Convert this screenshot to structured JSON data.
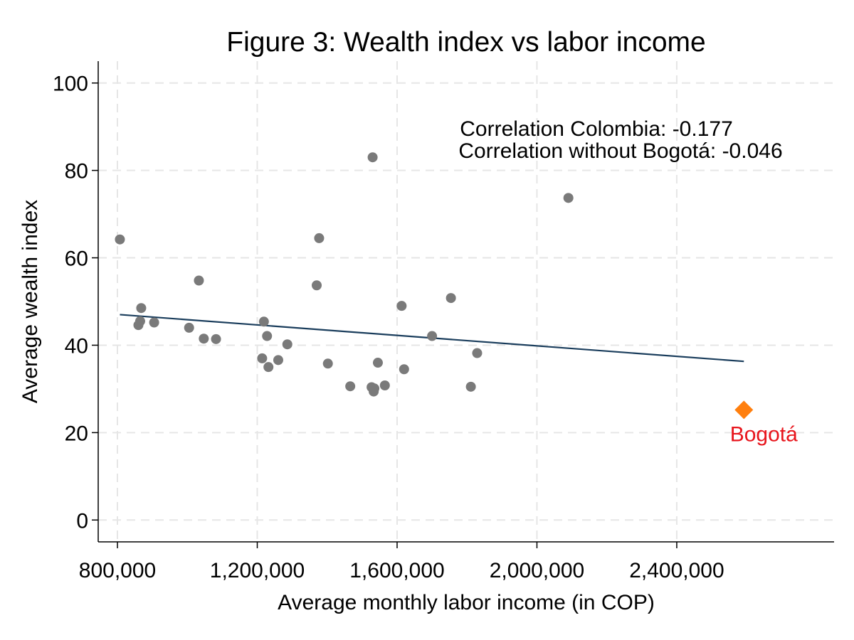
{
  "chart_data": {
    "type": "scatter",
    "title": "Figure 3: Wealth index vs labor income",
    "xlabel": "Average monthly labor income (in COP)",
    "ylabel": "Average wealth index",
    "xlim": [
      745000,
      2850000
    ],
    "ylim": [
      -5,
      105
    ],
    "x_ticks": [
      800000,
      1200000,
      1600000,
      2000000,
      2400000
    ],
    "x_tick_labels": [
      "800,000",
      "1,200,000",
      "1,600,000",
      "2,000,000",
      "2,400,000"
    ],
    "y_ticks": [
      0,
      20,
      40,
      60,
      80,
      100
    ],
    "y_tick_labels": [
      "0",
      "20",
      "40",
      "60",
      "80",
      "100"
    ],
    "grid": true,
    "annotations": [
      "Correlation Colombia: -0.177",
      "Correlation without Bogotá: -0.046"
    ],
    "points": [
      {
        "x": 807000,
        "y": 64.2
      },
      {
        "x": 860000,
        "y": 44.6
      },
      {
        "x": 865000,
        "y": 45.5
      },
      {
        "x": 868000,
        "y": 48.5
      },
      {
        "x": 905000,
        "y": 45.2
      },
      {
        "x": 1005000,
        "y": 44.0
      },
      {
        "x": 1033000,
        "y": 54.8
      },
      {
        "x": 1047000,
        "y": 41.5
      },
      {
        "x": 1082000,
        "y": 41.4
      },
      {
        "x": 1214000,
        "y": 37.0
      },
      {
        "x": 1219000,
        "y": 45.4
      },
      {
        "x": 1228000,
        "y": 42.1
      },
      {
        "x": 1232000,
        "y": 35.0
      },
      {
        "x": 1260000,
        "y": 36.6
      },
      {
        "x": 1286000,
        "y": 40.2
      },
      {
        "x": 1370000,
        "y": 53.7
      },
      {
        "x": 1377000,
        "y": 64.5
      },
      {
        "x": 1402000,
        "y": 35.8
      },
      {
        "x": 1466000,
        "y": 30.6
      },
      {
        "x": 1527000,
        "y": 30.4
      },
      {
        "x": 1533000,
        "y": 29.4
      },
      {
        "x": 1535000,
        "y": 30.1
      },
      {
        "x": 1530000,
        "y": 83.0
      },
      {
        "x": 1545000,
        "y": 36.0
      },
      {
        "x": 1565000,
        "y": 30.8
      },
      {
        "x": 1613000,
        "y": 49.0
      },
      {
        "x": 1620000,
        "y": 34.5
      },
      {
        "x": 1700000,
        "y": 42.1
      },
      {
        "x": 1754000,
        "y": 50.8
      },
      {
        "x": 1811000,
        "y": 30.5
      },
      {
        "x": 1829000,
        "y": 38.2
      },
      {
        "x": 2090000,
        "y": 73.7
      }
    ],
    "highlight": {
      "label": "Bogotá",
      "x": 2592000,
      "y": 25.2,
      "color": "#ff7f0e",
      "label_color": "#e8151c",
      "marker": "diamond"
    },
    "fit_line": {
      "x": [
        807000,
        2592000
      ],
      "y": [
        47.0,
        36.3
      ],
      "color": "#1a3d5c"
    },
    "point_color": "#7a7a7a"
  }
}
